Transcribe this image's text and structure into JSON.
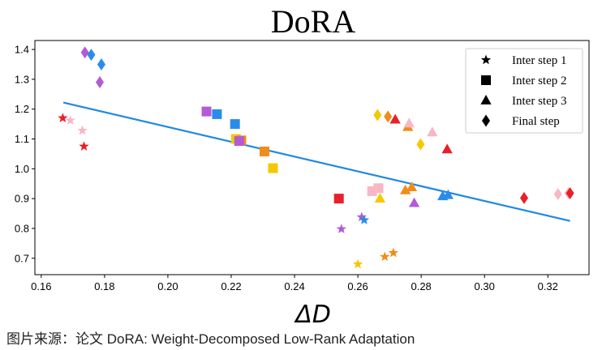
{
  "source_caption": "图片来源：论文 DoRA: Weight-Decomposed Low-Rank Adaptation",
  "chart_data": {
    "type": "scatter",
    "title": "DoRA",
    "xlabel": "ΔD",
    "ylabel": "",
    "xlim": [
      0.158,
      0.333
    ],
    "ylim": [
      0.645,
      1.43
    ],
    "xticks": [
      0.16,
      0.18,
      0.2,
      0.22,
      0.24,
      0.26,
      0.28,
      0.3,
      0.32
    ],
    "xtick_labels": [
      "0.16",
      "0.18",
      "0.20",
      "0.22",
      "0.24",
      "0.26",
      "0.28",
      "0.30",
      "0.32"
    ],
    "yticks": [
      0.7,
      0.8,
      0.9,
      1.0,
      1.1,
      1.2,
      1.3,
      1.4
    ],
    "ytick_labels": [
      "0.7",
      "0.8",
      "0.9",
      "1.0",
      "1.1",
      "1.2",
      "1.3",
      "1.4"
    ],
    "grid": false,
    "legend": {
      "position": "top-right",
      "entries": [
        {
          "label": "Inter step 1",
          "marker": "star"
        },
        {
          "label": "Inter step 2",
          "marker": "square"
        },
        {
          "label": "Inter step 3",
          "marker": "triangle"
        },
        {
          "label": "Final step",
          "marker": "diamond"
        }
      ]
    },
    "fit_line": {
      "color": "#1f88e5",
      "points": [
        [
          0.167,
          1.222
        ],
        [
          0.327,
          0.825
        ]
      ]
    },
    "points": [
      {
        "x": 0.1668,
        "y": 1.17,
        "marker": "star",
        "color": "#e8202a"
      },
      {
        "x": 0.1692,
        "y": 1.162,
        "marker": "star",
        "color": "#f7b7c4"
      },
      {
        "x": 0.173,
        "y": 1.128,
        "marker": "star",
        "color": "#f7b7c4"
      },
      {
        "x": 0.1735,
        "y": 1.075,
        "marker": "star",
        "color": "#e8202a"
      },
      {
        "x": 0.2548,
        "y": 0.798,
        "marker": "star",
        "color": "#b35ad6"
      },
      {
        "x": 0.2612,
        "y": 0.838,
        "marker": "star",
        "color": "#b35ad6"
      },
      {
        "x": 0.262,
        "y": 0.828,
        "marker": "star",
        "color": "#2a8ce8"
      },
      {
        "x": 0.26,
        "y": 0.68,
        "marker": "star",
        "color": "#f5c800"
      },
      {
        "x": 0.2685,
        "y": 0.705,
        "marker": "star",
        "color": "#f08c1a"
      },
      {
        "x": 0.2712,
        "y": 0.718,
        "marker": "star",
        "color": "#f08c1a"
      },
      {
        "x": 0.2122,
        "y": 1.192,
        "marker": "square",
        "color": "#b35ad6"
      },
      {
        "x": 0.2155,
        "y": 1.183,
        "marker": "square",
        "color": "#2a8ce8"
      },
      {
        "x": 0.2212,
        "y": 1.15,
        "marker": "square",
        "color": "#2a8ce8"
      },
      {
        "x": 0.2215,
        "y": 1.1,
        "marker": "square",
        "color": "#f5c800"
      },
      {
        "x": 0.2232,
        "y": 1.095,
        "marker": "square",
        "color": "#f08c1a"
      },
      {
        "x": 0.2225,
        "y": 1.093,
        "marker": "square",
        "color": "#b35ad6"
      },
      {
        "x": 0.2305,
        "y": 1.058,
        "marker": "square",
        "color": "#f08c1a"
      },
      {
        "x": 0.2332,
        "y": 1.002,
        "marker": "square",
        "color": "#f5c800"
      },
      {
        "x": 0.254,
        "y": 0.9,
        "marker": "square",
        "color": "#e8202a"
      },
      {
        "x": 0.2645,
        "y": 0.925,
        "marker": "square",
        "color": "#f7b7c4"
      },
      {
        "x": 0.2665,
        "y": 0.935,
        "marker": "square",
        "color": "#f7b7c4"
      },
      {
        "x": 0.267,
        "y": 0.9,
        "marker": "triangle",
        "color": "#f5c800"
      },
      {
        "x": 0.2718,
        "y": 1.165,
        "marker": "triangle",
        "color": "#e8202a"
      },
      {
        "x": 0.2758,
        "y": 1.14,
        "marker": "triangle",
        "color": "#f08c1a"
      },
      {
        "x": 0.2762,
        "y": 1.152,
        "marker": "triangle",
        "color": "#f7b7c4"
      },
      {
        "x": 0.2835,
        "y": 1.122,
        "marker": "triangle",
        "color": "#f7b7c4"
      },
      {
        "x": 0.275,
        "y": 0.928,
        "marker": "triangle",
        "color": "#f08c1a"
      },
      {
        "x": 0.277,
        "y": 0.938,
        "marker": "triangle",
        "color": "#f08c1a"
      },
      {
        "x": 0.2778,
        "y": 0.885,
        "marker": "triangle",
        "color": "#b35ad6"
      },
      {
        "x": 0.2868,
        "y": 0.908,
        "marker": "triangle",
        "color": "#2a8ce8"
      },
      {
        "x": 0.2885,
        "y": 0.912,
        "marker": "triangle",
        "color": "#2a8ce8"
      },
      {
        "x": 0.2882,
        "y": 1.065,
        "marker": "triangle",
        "color": "#e8202a"
      },
      {
        "x": 0.1738,
        "y": 1.39,
        "marker": "diamond",
        "color": "#b35ad6"
      },
      {
        "x": 0.1758,
        "y": 1.382,
        "marker": "diamond",
        "color": "#2a8ce8"
      },
      {
        "x": 0.179,
        "y": 1.35,
        "marker": "diamond",
        "color": "#2a8ce8"
      },
      {
        "x": 0.1785,
        "y": 1.29,
        "marker": "diamond",
        "color": "#b35ad6"
      },
      {
        "x": 0.2662,
        "y": 1.18,
        "marker": "diamond",
        "color": "#f5c800"
      },
      {
        "x": 0.2695,
        "y": 1.175,
        "marker": "diamond",
        "color": "#f08c1a"
      },
      {
        "x": 0.2798,
        "y": 1.082,
        "marker": "diamond",
        "color": "#f5c800"
      },
      {
        "x": 0.3125,
        "y": 0.902,
        "marker": "diamond",
        "color": "#e8202a"
      },
      {
        "x": 0.3232,
        "y": 0.915,
        "marker": "diamond",
        "color": "#f7b7c4"
      },
      {
        "x": 0.3265,
        "y": 0.918,
        "marker": "diamond",
        "color": "#f7b7c4"
      },
      {
        "x": 0.327,
        "y": 0.918,
        "marker": "diamond",
        "color": "#e8202a"
      }
    ]
  }
}
